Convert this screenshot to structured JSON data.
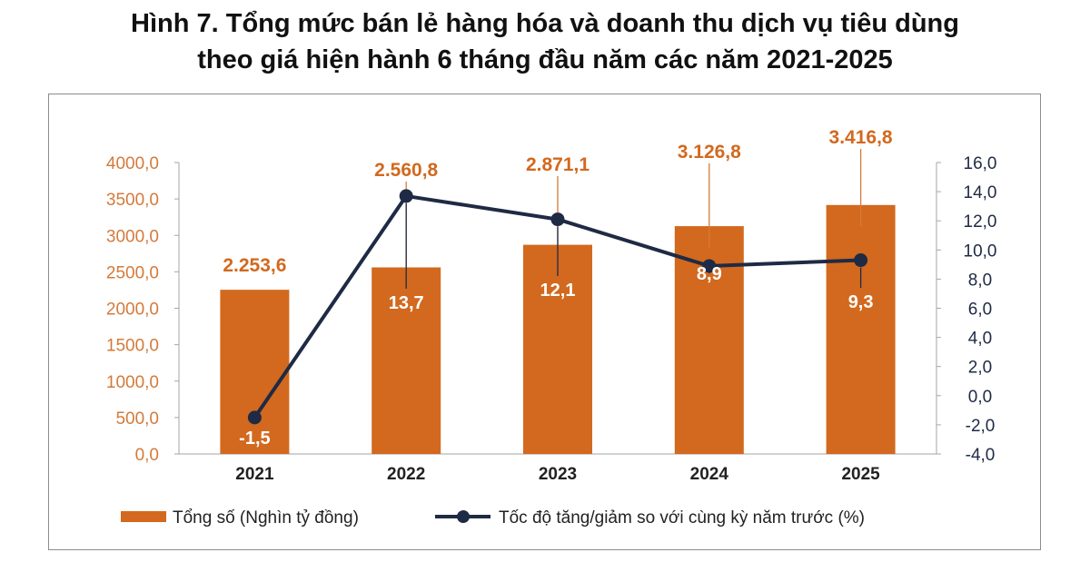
{
  "title": "Hình 7. Tổng mức bán lẻ hàng hóa và doanh thu dịch vụ tiêu dùng theo giá hiện hành 6 tháng đầu năm các năm 2021-2025",
  "title_line1": "Hình 7. Tổng mức bán lẻ hàng hóa và doanh thu dịch vụ tiêu dùng",
  "title_line2": "theo giá hiện hành 6 tháng đầu năm các năm 2021-2025",
  "chart_data": {
    "type": "bar",
    "categories": [
      "2021",
      "2022",
      "2023",
      "2024",
      "2025"
    ],
    "series": [
      {
        "name": "Tổng số (Nghìn tỷ đồng)",
        "type": "bar",
        "axis": "left",
        "values": [
          2253.6,
          2560.8,
          2871.1,
          3126.8,
          3416.8
        ],
        "labels": [
          "2.253,6",
          "2.560,8",
          "2.871,1",
          "3.126,8",
          "3.416,8"
        ],
        "color": "#d2691e"
      },
      {
        "name": "Tốc độ tăng/giảm so với cùng kỳ năm trước (%)",
        "type": "line",
        "axis": "right",
        "values": [
          -1.5,
          13.7,
          12.1,
          8.9,
          9.3
        ],
        "labels": [
          "-1,5",
          "13,7",
          "12,1",
          "8,9",
          "9,3"
        ],
        "color": "#1f2a44"
      }
    ],
    "y_left": {
      "range": [
        0,
        4000
      ],
      "ticks": [
        0,
        500,
        1000,
        1500,
        2000,
        2500,
        3000,
        3500,
        4000
      ],
      "tick_labels": [
        "0,0",
        "500,0",
        "1000,0",
        "1500,0",
        "2000,0",
        "2500,0",
        "3000,0",
        "3500,0",
        "4000,0"
      ],
      "color": "#d47a3a"
    },
    "y_right": {
      "range": [
        -4,
        16
      ],
      "ticks": [
        -4,
        -2,
        0,
        2,
        4,
        6,
        8,
        10,
        12,
        14,
        16
      ],
      "tick_labels": [
        "-4,0",
        "-2,0",
        "0,0",
        "2,0",
        "4,0",
        "6,0",
        "8,0",
        "10,0",
        "12,0",
        "14,0",
        "16,0"
      ],
      "color": "#1f2a44"
    },
    "grid": false,
    "legend": "bottom",
    "xlabel": "",
    "ylabel": ""
  }
}
